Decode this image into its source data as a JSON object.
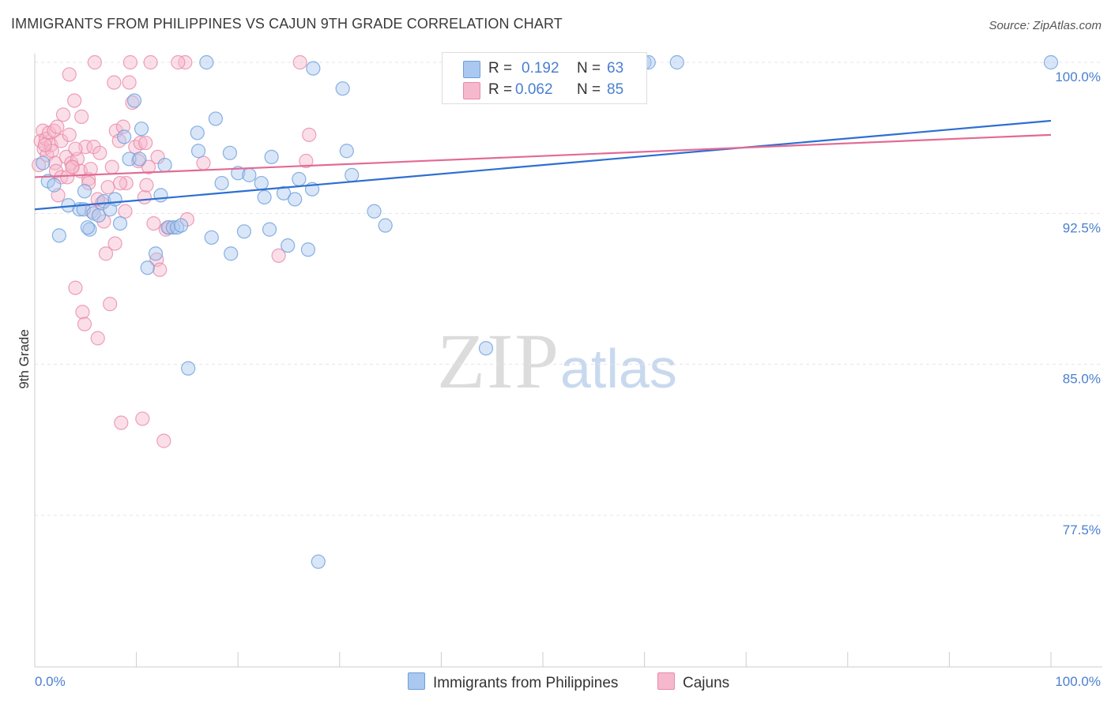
{
  "title": "IMMIGRANTS FROM PHILIPPINES VS CAJUN 9TH GRADE CORRELATION CHART",
  "source": "Source: ZipAtlas.com",
  "watermark": {
    "zip": "ZIP",
    "atlas": "atlas"
  },
  "legend": {
    "r_label": "R =",
    "n_label": "N =",
    "series": [
      {
        "name": "Immigrants from Philippines",
        "r": "0.192",
        "n": "63"
      },
      {
        "name": "Cajuns",
        "r": "0.062",
        "n": "85"
      }
    ]
  },
  "colors": {
    "blue_fill": "#aac8f0",
    "blue_stroke": "#6a9fdc",
    "blue_line": "#2e6fd0",
    "pink_fill": "#f6b8cc",
    "pink_stroke": "#e88aa8",
    "pink_line": "#e26a94",
    "tick_text": "#4a7fd0",
    "grid": "#e4e4e4"
  },
  "chart_data": {
    "type": "scatter",
    "title": "IMMIGRANTS FROM PHILIPPINES VS CAJUN 9TH GRADE CORRELATION CHART",
    "xlabel": "",
    "ylabel": "9th Grade",
    "xlim": [
      0,
      100
    ],
    "ylim": [
      70,
      100.8
    ],
    "x_tick_labels": [
      "0.0%",
      "100.0%"
    ],
    "y_ticks": [
      100,
      92.5,
      85,
      77.5
    ],
    "y_tick_labels": [
      "100.0%",
      "92.5%",
      "85.0%",
      "77.5%"
    ],
    "grid": true,
    "legend_position": "top-center",
    "series": [
      {
        "name": "Immigrants from Philippines",
        "r": 0.192,
        "n": 63,
        "trend": {
          "x0": 0,
          "y0": 92.7,
          "x1": 100,
          "y1": 97.1
        },
        "points": [
          [
            0.8,
            95.0
          ],
          [
            1.3,
            94.1
          ],
          [
            1.9,
            93.9
          ],
          [
            2.4,
            91.4
          ],
          [
            3.3,
            92.9
          ],
          [
            4.4,
            92.7
          ],
          [
            4.8,
            92.7
          ],
          [
            4.9,
            93.6
          ],
          [
            5.4,
            91.7
          ],
          [
            5.8,
            92.5
          ],
          [
            6.3,
            92.4
          ],
          [
            6.8,
            93.1
          ],
          [
            7.4,
            92.7
          ],
          [
            7.9,
            93.2
          ],
          [
            8.4,
            92.0
          ],
          [
            8.8,
            96.3
          ],
          [
            9.3,
            95.2
          ],
          [
            9.8,
            98.1
          ],
          [
            10.3,
            95.2
          ],
          [
            10.5,
            96.7
          ],
          [
            11.1,
            89.8
          ],
          [
            11.9,
            90.5
          ],
          [
            12.4,
            93.4
          ],
          [
            12.8,
            94.9
          ],
          [
            13.1,
            91.8
          ],
          [
            13.6,
            91.8
          ],
          [
            14.0,
            91.8
          ],
          [
            14.4,
            91.9
          ],
          [
            15.1,
            84.8
          ],
          [
            16.0,
            96.5
          ],
          [
            16.1,
            95.6
          ],
          [
            16.9,
            100.0
          ],
          [
            17.4,
            91.3
          ],
          [
            17.8,
            97.2
          ],
          [
            18.4,
            94.0
          ],
          [
            19.2,
            95.5
          ],
          [
            19.3,
            90.5
          ],
          [
            20.0,
            94.5
          ],
          [
            20.6,
            91.6
          ],
          [
            21.1,
            94.4
          ],
          [
            22.3,
            94.0
          ],
          [
            22.6,
            93.3
          ],
          [
            23.1,
            91.7
          ],
          [
            23.3,
            95.3
          ],
          [
            24.5,
            93.5
          ],
          [
            24.9,
            90.9
          ],
          [
            25.6,
            93.2
          ],
          [
            26.0,
            94.2
          ],
          [
            26.9,
            90.7
          ],
          [
            27.3,
            93.7
          ],
          [
            27.4,
            99.7
          ],
          [
            27.9,
            75.2
          ],
          [
            30.3,
            98.7
          ],
          [
            30.7,
            95.6
          ],
          [
            31.2,
            94.4
          ],
          [
            33.4,
            92.6
          ],
          [
            34.5,
            91.9
          ],
          [
            44.4,
            85.8
          ],
          [
            60.0,
            100.0
          ],
          [
            60.4,
            100.0
          ],
          [
            63.2,
            100.0
          ],
          [
            100.0,
            100.0
          ],
          [
            5.2,
            91.8
          ]
        ]
      },
      {
        "name": "Cajuns",
        "r": 0.062,
        "n": 85,
        "trend": {
          "x0": 0,
          "y0": 94.3,
          "x1": 100,
          "y1": 96.4
        },
        "points": [
          [
            0.4,
            94.9
          ],
          [
            0.6,
            96.1
          ],
          [
            0.8,
            96.6
          ],
          [
            0.9,
            95.7
          ],
          [
            1.1,
            96.2
          ],
          [
            1.2,
            95.4
          ],
          [
            1.4,
            96.5
          ],
          [
            1.6,
            95.9
          ],
          [
            1.7,
            95.6
          ],
          [
            1.9,
            96.6
          ],
          [
            2.0,
            95.0
          ],
          [
            2.1,
            94.6
          ],
          [
            2.3,
            93.4
          ],
          [
            2.6,
            96.1
          ],
          [
            2.6,
            94.3
          ],
          [
            2.8,
            97.4
          ],
          [
            3.1,
            95.3
          ],
          [
            3.2,
            94.3
          ],
          [
            3.4,
            96.4
          ],
          [
            3.6,
            95.0
          ],
          [
            3.7,
            94.8
          ],
          [
            3.9,
            98.1
          ],
          [
            4.0,
            88.8
          ],
          [
            4.2,
            95.2
          ],
          [
            4.5,
            94.6
          ],
          [
            4.6,
            97.3
          ],
          [
            4.7,
            87.6
          ],
          [
            4.9,
            87.0
          ],
          [
            5.0,
            95.8
          ],
          [
            5.3,
            94.2
          ],
          [
            5.5,
            94.7
          ],
          [
            5.6,
            92.6
          ],
          [
            5.8,
            95.8
          ],
          [
            6.2,
            86.3
          ],
          [
            6.4,
            95.5
          ],
          [
            6.6,
            93.0
          ],
          [
            6.8,
            92.1
          ],
          [
            7.0,
            90.5
          ],
          [
            7.2,
            93.8
          ],
          [
            7.4,
            88.0
          ],
          [
            7.6,
            94.8
          ],
          [
            7.9,
            91.0
          ],
          [
            8.0,
            96.6
          ],
          [
            8.3,
            96.1
          ],
          [
            8.5,
            82.1
          ],
          [
            8.7,
            96.8
          ],
          [
            8.9,
            92.6
          ],
          [
            9.0,
            94.0
          ],
          [
            9.3,
            99.0
          ],
          [
            9.4,
            100.0
          ],
          [
            9.6,
            98.0
          ],
          [
            9.9,
            95.8
          ],
          [
            10.2,
            95.1
          ],
          [
            10.4,
            96.0
          ],
          [
            10.6,
            82.3
          ],
          [
            10.8,
            93.3
          ],
          [
            11.0,
            93.9
          ],
          [
            11.2,
            94.8
          ],
          [
            11.4,
            100.0
          ],
          [
            11.7,
            92.0
          ],
          [
            12.0,
            90.2
          ],
          [
            12.3,
            89.7
          ],
          [
            12.7,
            81.2
          ],
          [
            12.9,
            91.7
          ],
          [
            13.2,
            91.8
          ],
          [
            14.8,
            100.0
          ],
          [
            15.0,
            92.2
          ],
          [
            16.6,
            95.0
          ],
          [
            24.0,
            90.4
          ],
          [
            26.1,
            100.0
          ],
          [
            26.7,
            95.1
          ],
          [
            27.0,
            96.4
          ],
          [
            3.4,
            99.4
          ],
          [
            4.0,
            95.7
          ],
          [
            5.9,
            100.0
          ],
          [
            5.3,
            94.0
          ],
          [
            6.2,
            93.2
          ],
          [
            7.8,
            99.0
          ],
          [
            2.2,
            96.8
          ],
          [
            12.1,
            95.3
          ],
          [
            1.0,
            95.9
          ],
          [
            10.9,
            96.0
          ],
          [
            14.1,
            100.0
          ],
          [
            3.7,
            94.8
          ],
          [
            8.4,
            94.0
          ]
        ]
      }
    ]
  }
}
